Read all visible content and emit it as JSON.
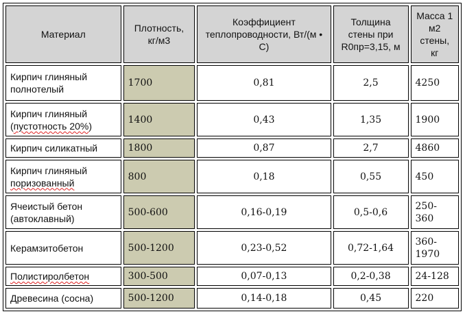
{
  "table": {
    "headers": {
      "material": "Материал",
      "density": "Плотность, кг/м3",
      "conductivity": "Коэффициент теплопроводности, Вт/(м • С)",
      "thickness": "Толщина стены при R0пр=3,15, м",
      "mass": "Масса 1 м2 стены, кг"
    },
    "rows": [
      {
        "material_a": "Кирпич глиняный полнотелый",
        "material_b": "",
        "density": "1700",
        "conductivity": "0,81",
        "thickness": "2,5",
        "mass": "4250"
      },
      {
        "material_a": "Кирпич глиняный (",
        "material_b": "пустотность 20%",
        "material_c": ")",
        "density": "1400",
        "conductivity": "0,43",
        "thickness": "1,35",
        "mass": "1900"
      },
      {
        "material_a": "Кирпич силикатный",
        "material_b": "",
        "density": "1800",
        "conductivity": "0,87",
        "thickness": "2,7",
        "mass": "4860"
      },
      {
        "material_a": "Кирпич глиняный ",
        "material_b": "поризованный",
        "density": "800",
        "conductivity": "0,18",
        "thickness": "0,55",
        "mass": "450"
      },
      {
        "material_a": "Ячеистый бетон (автоклавный)",
        "material_b": "",
        "density": "500-600",
        "conductivity": "0,16-0,19",
        "thickness": "0,5-0,6",
        "mass": "250-360"
      },
      {
        "material_a": "Керамзитобетон",
        "material_b": "",
        "density": "500-1200",
        "conductivity": "0,23-0,52",
        "thickness": "0,72-1,64",
        "mass": "360-1970"
      },
      {
        "material_a": "",
        "material_b": "Полистиролбетон",
        "density": "300-500",
        "conductivity": "0,07-0,13",
        "thickness": "0,2-0,38",
        "mass": "24-128"
      },
      {
        "material_a": "Древесина (сосна)",
        "material_b": "",
        "density": "500-1200",
        "conductivity": "0,14-0,18",
        "thickness": "0,45",
        "mass": "220"
      }
    ]
  },
  "colors": {
    "header_bg": "#d4d4d4",
    "density_bg": "#cccbb0",
    "spellcheck": "#e02020"
  }
}
